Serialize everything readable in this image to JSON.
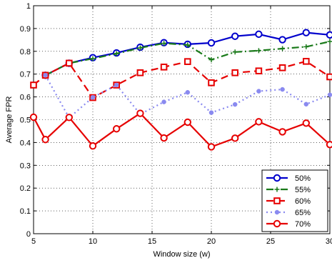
{
  "chart_data": {
    "type": "line",
    "xlabel": "Window size (w)",
    "ylabel": "Average FPR",
    "xlim": [
      5,
      30
    ],
    "ylim": [
      0,
      1
    ],
    "x_ticks": [
      5,
      10,
      15,
      20,
      25,
      30
    ],
    "y_ticks": [
      0,
      0.1,
      0.2,
      0.3,
      0.4,
      0.5,
      0.6,
      0.7,
      0.8,
      0.9,
      1
    ],
    "x_tick_labels": [
      "5",
      "10",
      "15",
      "20",
      "25",
      "30"
    ],
    "y_tick_labels": [
      "0",
      "0.1",
      "0.2",
      "0.3",
      "0.4",
      "0.5",
      "0.6",
      "0.7",
      "0.8",
      "0.9",
      "1"
    ],
    "grid": true,
    "legend_position": "bottom-right",
    "x": [
      5,
      6,
      8,
      10,
      12,
      14,
      16,
      18,
      20,
      22,
      24,
      26,
      28,
      30
    ],
    "series": [
      {
        "name": "50%",
        "color": "#0000cc",
        "dash": "solid",
        "marker": "circle-open",
        "values": [
          null,
          0.695,
          0.748,
          0.772,
          0.793,
          0.818,
          0.838,
          0.831,
          0.837,
          0.866,
          0.875,
          0.851,
          0.882,
          0.872
        ]
      },
      {
        "name": "55%",
        "color": "#1a7a1a",
        "dash": "dashdot",
        "marker": "plus",
        "values": [
          null,
          0.695,
          0.748,
          0.768,
          0.79,
          0.815,
          0.835,
          0.828,
          0.763,
          0.797,
          0.803,
          0.812,
          0.82,
          0.843
        ]
      },
      {
        "name": "60%",
        "color": "#e60000",
        "dash": "dashed",
        "marker": "square-open",
        "values": [
          0.652,
          0.695,
          0.748,
          0.597,
          0.652,
          0.706,
          0.731,
          0.755,
          0.662,
          0.706,
          0.714,
          0.728,
          0.756,
          0.688
        ]
      },
      {
        "name": "65%",
        "color": "#8a8af0",
        "dash": "dotted",
        "marker": "dot",
        "values": [
          null,
          0.695,
          0.508,
          0.598,
          0.652,
          0.524,
          0.578,
          0.62,
          0.531,
          0.567,
          0.625,
          0.633,
          0.568,
          0.609
        ]
      },
      {
        "name": "70%",
        "color": "#e60000",
        "dash": "solid",
        "marker": "circle-open",
        "values": [
          0.511,
          0.413,
          0.51,
          0.385,
          0.46,
          0.528,
          0.42,
          0.489,
          0.381,
          0.419,
          0.491,
          0.447,
          0.485,
          0.391
        ]
      }
    ]
  }
}
